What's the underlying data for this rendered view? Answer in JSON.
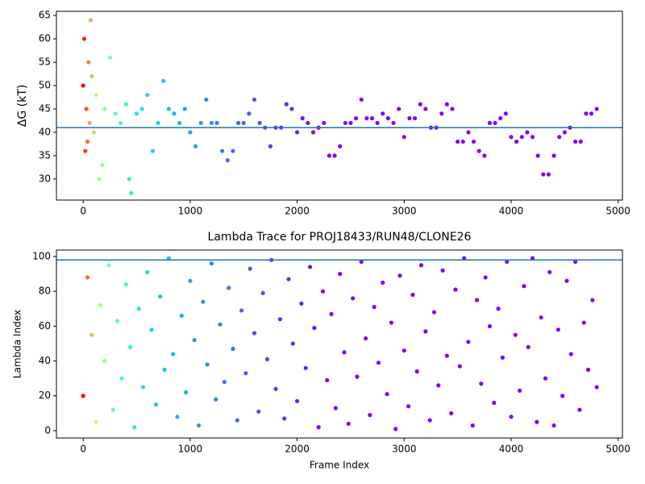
{
  "chart_data": [
    {
      "type": "scatter",
      "ylabel": "ΔG (kT)",
      "x": [
        0,
        10,
        20,
        30,
        40,
        50,
        60,
        70,
        80,
        100,
        120,
        150,
        180,
        200,
        250,
        300,
        350,
        400,
        430,
        450,
        500,
        550,
        600,
        650,
        700,
        750,
        800,
        850,
        900,
        950,
        1000,
        1050,
        1100,
        1150,
        1200,
        1250,
        1300,
        1350,
        1400,
        1450,
        1500,
        1550,
        1600,
        1650,
        1700,
        1750,
        1800,
        1850,
        1900,
        1950,
        2000,
        2050,
        2100,
        2150,
        2200,
        2250,
        2300,
        2350,
        2400,
        2450,
        2500,
        2550,
        2600,
        2650,
        2700,
        2750,
        2800,
        2850,
        2900,
        2950,
        3000,
        3050,
        3100,
        3150,
        3200,
        3250,
        3300,
        3350,
        3400,
        3450,
        3500,
        3550,
        3600,
        3650,
        3700,
        3750,
        3800,
        3850,
        3900,
        3950,
        4000,
        4050,
        4100,
        4150,
        4200,
        4250,
        4300,
        4350,
        4400,
        4450,
        4500,
        4550,
        4600,
        4650,
        4700,
        4750,
        4800
      ],
      "y": [
        50,
        60,
        36,
        45,
        38,
        55,
        42,
        64,
        52,
        40,
        48,
        30,
        33,
        45,
        56,
        44,
        42,
        46,
        30,
        27,
        44,
        45,
        48,
        36,
        42,
        51,
        45,
        44,
        42,
        45,
        40,
        37,
        42,
        47,
        42,
        42,
        36,
        34,
        36,
        42,
        42,
        44,
        47,
        42,
        41,
        37,
        41,
        41,
        46,
        45,
        40,
        43,
        42,
        40,
        41,
        42,
        35,
        35,
        37,
        42,
        42,
        43,
        47,
        43,
        43,
        42,
        44,
        43,
        42,
        45,
        39,
        43,
        43,
        46,
        45,
        41,
        41,
        44,
        46,
        45,
        38,
        38,
        40,
        38,
        36,
        35,
        42,
        42,
        43,
        44,
        39,
        38,
        39,
        40,
        39,
        35,
        31,
        31,
        35,
        39,
        40,
        41,
        38,
        38,
        44,
        44,
        45
      ],
      "hline": 41,
      "hline_color": "#1f77b4",
      "color_scale": {
        "values": [
          0,
          60,
          120,
          250,
          500,
          900,
          1500,
          2200
        ],
        "colors": [
          "#ff0000",
          "#ff9a50",
          "#b8ff70",
          "#70ffb0",
          "#2ee0d8",
          "#1ab0f0",
          "#4a5cf0",
          "#8000ff"
        ]
      },
      "xlim": [
        -250,
        5040
      ],
      "xticks": [
        0,
        1000,
        2000,
        3000,
        4000,
        5000
      ],
      "ylim": [
        25.5,
        65.9
      ],
      "yticks": [
        30,
        35,
        40,
        45,
        50,
        55,
        60,
        65
      ]
    },
    {
      "type": "scatter",
      "title": "Lambda Trace for PROJ18433/RUN48/CLONE26",
      "xlabel": "Frame Index",
      "ylabel": "Lambda Index",
      "x": [
        0,
        40,
        80,
        120,
        160,
        200,
        240,
        280,
        320,
        360,
        400,
        440,
        480,
        520,
        560,
        600,
        640,
        680,
        720,
        760,
        800,
        840,
        880,
        920,
        960,
        1000,
        1040,
        1080,
        1120,
        1160,
        1200,
        1240,
        1280,
        1320,
        1360,
        1400,
        1440,
        1480,
        1520,
        1560,
        1600,
        1640,
        1680,
        1720,
        1760,
        1800,
        1840,
        1880,
        1920,
        1960,
        2000,
        2040,
        2080,
        2120,
        2160,
        2200,
        2240,
        2280,
        2320,
        2360,
        2400,
        2440,
        2480,
        2520,
        2560,
        2600,
        2640,
        2680,
        2720,
        2760,
        2800,
        2840,
        2880,
        2920,
        2960,
        3000,
        3040,
        3080,
        3120,
        3160,
        3200,
        3240,
        3280,
        3320,
        3360,
        3400,
        3440,
        3480,
        3520,
        3560,
        3600,
        3640,
        3680,
        3720,
        3760,
        3800,
        3840,
        3880,
        3920,
        3960,
        4000,
        4040,
        4080,
        4120,
        4160,
        4200,
        4240,
        4280,
        4320,
        4360,
        4400,
        4440,
        4480,
        4520,
        4560,
        4600,
        4640,
        4680,
        4720,
        4760,
        4800
      ],
      "y": [
        20,
        88,
        55,
        5,
        72,
        40,
        95,
        12,
        63,
        30,
        84,
        48,
        2,
        70,
        25,
        91,
        58,
        15,
        77,
        35,
        99,
        44,
        8,
        66,
        22,
        86,
        52,
        3,
        74,
        38,
        96,
        18,
        61,
        28,
        82,
        47,
        6,
        69,
        33,
        93,
        56,
        11,
        79,
        41,
        98,
        24,
        64,
        7,
        87,
        50,
        17,
        73,
        36,
        94,
        59,
        2,
        80,
        29,
        67,
        13,
        90,
        45,
        4,
        76,
        31,
        97,
        53,
        9,
        71,
        39,
        85,
        21,
        62,
        1,
        89,
        46,
        14,
        78,
        34,
        95,
        57,
        6,
        68,
        26,
        92,
        43,
        10,
        81,
        37,
        99,
        51,
        3,
        75,
        27,
        88,
        60,
        16,
        70,
        42,
        97,
        8,
        55,
        23,
        83,
        48,
        99,
        5,
        65,
        30,
        91,
        3,
        58,
        20,
        86,
        44,
        97,
        12,
        62,
        35,
        75,
        25
      ],
      "hline": 98,
      "hline_color": "#1f77b4",
      "color_scale": {
        "values": [
          0,
          60,
          120,
          250,
          500,
          900,
          1500,
          2200
        ],
        "colors": [
          "#ff0000",
          "#ff9a50",
          "#b8ff70",
          "#70ffb0",
          "#2ee0d8",
          "#1ab0f0",
          "#4a5cf0",
          "#8000ff"
        ]
      },
      "xlim": [
        -250,
        5040
      ],
      "xticks": [
        0,
        1000,
        2000,
        3000,
        4000,
        5000
      ],
      "ylim": [
        -4.2,
        103.7
      ],
      "yticks": [
        0,
        20,
        40,
        60,
        80,
        100
      ]
    }
  ]
}
